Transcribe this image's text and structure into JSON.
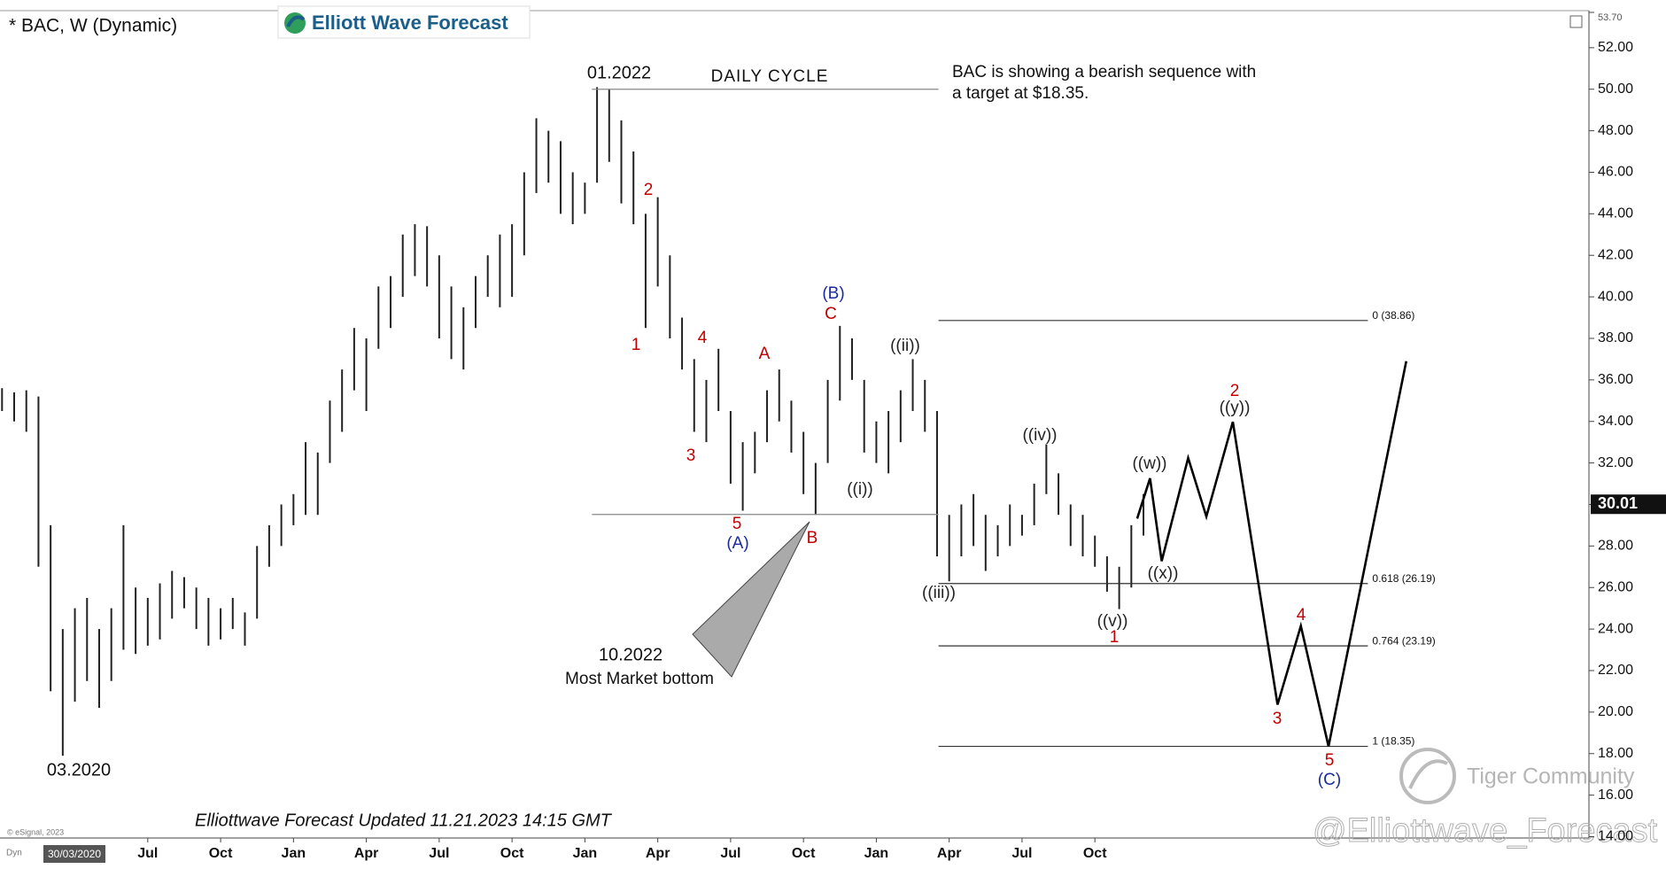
{
  "header": {
    "title": "* BAC, W (Dynamic)",
    "logo": "Elliott Wave Forecast"
  },
  "chart_data": {
    "type": "ohlc",
    "bars": {
      "color": "#222222",
      "x": [
        0,
        0.5,
        1,
        1.5,
        2,
        2.5,
        3,
        3.5,
        4,
        4.5,
        5,
        5.5,
        6,
        6.5,
        7,
        7.5,
        8,
        8.5,
        9,
        9.5,
        10,
        10.5,
        11,
        11.5,
        12,
        12.5,
        13,
        13.5,
        14,
        14.5,
        15,
        15.5,
        16,
        16.5,
        17,
        17.5,
        18,
        18.5,
        19,
        19.5,
        20,
        20.5,
        21,
        21.5,
        22,
        22.5,
        23,
        23.5,
        24,
        24.5,
        25,
        25.5,
        26,
        26.5,
        27,
        27.5,
        28,
        28.5,
        29,
        29.5,
        30,
        30.5,
        31,
        31.5,
        32,
        32.5,
        33,
        33.5,
        34,
        34.5,
        35,
        35.5,
        36,
        36.5,
        37,
        37.5,
        38,
        38.5,
        39,
        39.5,
        40,
        40.5,
        41,
        41.5,
        42,
        42.5,
        43,
        43.5,
        44,
        44.5,
        45,
        45.5,
        46,
        46.5,
        47
      ],
      "low": [
        34.5,
        34.0,
        33.5,
        27.0,
        21.0,
        17.9,
        20.5,
        21.5,
        20.2,
        21.5,
        23.0,
        22.8,
        23.2,
        23.5,
        24.5,
        25.0,
        24.0,
        23.2,
        23.5,
        24.0,
        23.2,
        24.5,
        27.0,
        28.0,
        29.0,
        29.5,
        29.5,
        32.0,
        33.5,
        35.5,
        34.5,
        37.5,
        38.5,
        40.0,
        41.0,
        40.5,
        38.0,
        37.0,
        36.5,
        38.5,
        40.0,
        39.5,
        40.0,
        42.0,
        45.0,
        45.5,
        44.0,
        43.5,
        44.0,
        45.5,
        46.5,
        44.5,
        43.5,
        38.5,
        40.5,
        38.0,
        36.5,
        33.5,
        33.0,
        34.5,
        31.0,
        29.7,
        31.5,
        33.0,
        34.0,
        32.5,
        30.5,
        29.5,
        32.0,
        35.0,
        36.0,
        32.5,
        32.0,
        31.5,
        33.0,
        34.5,
        33.5,
        27.5,
        26.3,
        27.5,
        28.0,
        26.8,
        27.5,
        28.0,
        28.5,
        29.0,
        30.5,
        29.5,
        28.0,
        27.5,
        27.0,
        25.8,
        24.96,
        26.0,
        28.5
      ],
      "high": [
        35.6,
        35.4,
        35.5,
        35.2,
        29.0,
        24.0,
        25.0,
        25.5,
        24.0,
        25.0,
        29.0,
        26.0,
        25.5,
        26.2,
        26.8,
        26.5,
        26.0,
        25.5,
        25.0,
        25.5,
        24.8,
        28.0,
        29.0,
        30.0,
        30.5,
        33.0,
        32.5,
        35.0,
        36.5,
        38.5,
        38.0,
        40.5,
        41.0,
        43.0,
        43.5,
        43.4,
        42.0,
        40.5,
        39.5,
        41.0,
        42.0,
        43.0,
        43.5,
        46.0,
        48.6,
        48.0,
        47.5,
        46.0,
        45.5,
        50.1,
        50.0,
        48.5,
        47.0,
        44.0,
        44.8,
        42.0,
        39.0,
        37.0,
        36.0,
        37.5,
        34.5,
        33.0,
        33.5,
        35.5,
        36.5,
        35.0,
        33.5,
        32.0,
        36.0,
        38.6,
        38.0,
        36.0,
        34.0,
        34.5,
        35.5,
        37.0,
        36.0,
        34.5,
        29.5,
        30.0,
        30.5,
        29.5,
        29.0,
        30.0,
        29.5,
        31.0,
        32.9,
        31.5,
        30.0,
        29.5,
        28.5,
        27.5,
        27.0,
        29.0,
        30.5
      ]
    },
    "xlim": [
      0,
      65.35
    ],
    "xticks": [
      {
        "value": 6,
        "label": "Jul"
      },
      {
        "value": 9,
        "label": "Oct"
      },
      {
        "value": 12,
        "label": "Jan"
      },
      {
        "value": 15,
        "label": "Apr"
      },
      {
        "value": 18,
        "label": "Jul"
      },
      {
        "value": 21,
        "label": "Oct"
      },
      {
        "value": 24,
        "label": "Jan"
      },
      {
        "value": 27,
        "label": "Apr"
      },
      {
        "value": 30,
        "label": "Jul"
      },
      {
        "value": 33,
        "label": "Oct"
      },
      {
        "value": 36,
        "label": "Jan"
      },
      {
        "value": 39,
        "label": "Apr"
      },
      {
        "value": 42,
        "label": "Jul"
      },
      {
        "value": 45,
        "label": "Oct"
      }
    ],
    "cursor_date": "30/03/2020",
    "ylim": [
      14,
      53.7
    ],
    "yticks": [
      {
        "value": 14,
        "label": "14.00"
      },
      {
        "value": 16,
        "label": "16.00"
      },
      {
        "value": 18,
        "label": "18.00"
      },
      {
        "value": 20,
        "label": "20.00"
      },
      {
        "value": 22,
        "label": "22.00"
      },
      {
        "value": 24,
        "label": "24.00"
      },
      {
        "value": 26,
        "label": "26.00"
      },
      {
        "value": 28,
        "label": "28.00"
      },
      {
        "value": 30,
        "label": "30.00"
      },
      {
        "value": 32,
        "label": "32.00"
      },
      {
        "value": 34,
        "label": "34.00"
      },
      {
        "value": 36,
        "label": "36.00"
      },
      {
        "value": 38,
        "label": "38.00"
      },
      {
        "value": 40,
        "label": "40.00"
      },
      {
        "value": 42,
        "label": "42.00"
      },
      {
        "value": 44,
        "label": "44.00"
      },
      {
        "value": 46,
        "label": "46.00"
      },
      {
        "value": 48,
        "label": "48.00"
      },
      {
        "value": 50,
        "label": "50.00"
      },
      {
        "value": 52,
        "label": "52.00"
      },
      {
        "value": 53.7,
        "label": "53.70"
      }
    ],
    "last_price": 30.01,
    "fib_x": [
      38.56,
      56.24
    ],
    "fib_levels": [
      {
        "value": 38.86,
        "label": "0 (38.86)"
      },
      {
        "value": 26.19,
        "label": "0.618 (26.19)"
      },
      {
        "value": 23.19,
        "label": "0.764 (23.19)"
      },
      {
        "value": 18.35,
        "label": "1 (18.35)"
      }
    ],
    "cycle_line": {
      "value": 50,
      "x": [
        24.29,
        38.56
      ]
    },
    "support_line": {
      "value": 29.52,
      "x": [
        24.29,
        38.56
      ]
    },
    "projection": {
      "color": "#000000",
      "x": [
        46.74,
        47.27,
        47.75,
        48.84,
        49.59,
        50.68,
        52.52,
        53.48,
        54.62,
        57.82
      ],
      "y": [
        29.32,
        31.26,
        27.27,
        32.24,
        29.42,
        33.98,
        20.36,
        24.15,
        18.35,
        36.9
      ]
    },
    "wave_labels": [
      {
        "text": "1",
        "color": "#c00000"
      },
      {
        "text": "2",
        "color": "#c00000"
      },
      {
        "text": "3",
        "color": "#c00000"
      },
      {
        "text": "4",
        "color": "#c00000"
      },
      {
        "text": "5",
        "color": "#c00000"
      },
      {
        "text": "(A)",
        "color": "#1a2a9e"
      },
      {
        "text": "A",
        "color": "#c00000"
      },
      {
        "text": "B",
        "color": "#c00000"
      },
      {
        "text": "(B)",
        "color": "#1a2a9e"
      },
      {
        "text": "C",
        "color": "#c00000"
      },
      {
        "text": "((i))",
        "color": "#222222"
      },
      {
        "text": "((ii))",
        "color": "#222222"
      },
      {
        "text": "((iii))",
        "color": "#222222"
      },
      {
        "text": "((iv))",
        "color": "#222222"
      },
      {
        "text": "((v))",
        "color": "#222222"
      },
      {
        "text": "1",
        "color": "#c00000"
      },
      {
        "text": "((w))",
        "color": "#222222"
      },
      {
        "text": "((x))",
        "color": "#222222"
      },
      {
        "text": "2",
        "color": "#c00000"
      },
      {
        "text": "((y))",
        "color": "#222222"
      },
      {
        "text": "4",
        "color": "#c00000"
      },
      {
        "text": "3",
        "color": "#c00000"
      },
      {
        "text": "5",
        "color": "#c00000"
      },
      {
        "text": "(C)",
        "color": "#1a2a9e"
      }
    ],
    "annotations": {
      "top": "01.2022",
      "cycle": "DAILY CYCLE",
      "note": [
        "BAC is showing a bearish sequence with",
        "a target at $18.35."
      ],
      "bottom_date": "10.2022",
      "bottom_text": "Most Market bottom",
      "low_date": "03.2020",
      "footer": "Elliottwave Forecast Updated 11.21.2023 14:15 GMT",
      "copyright": "© eSignal, 2023",
      "mode": "Dyn",
      "watermark": "Tiger Community",
      "handle": "@Elliottwave_Forecast"
    }
  }
}
